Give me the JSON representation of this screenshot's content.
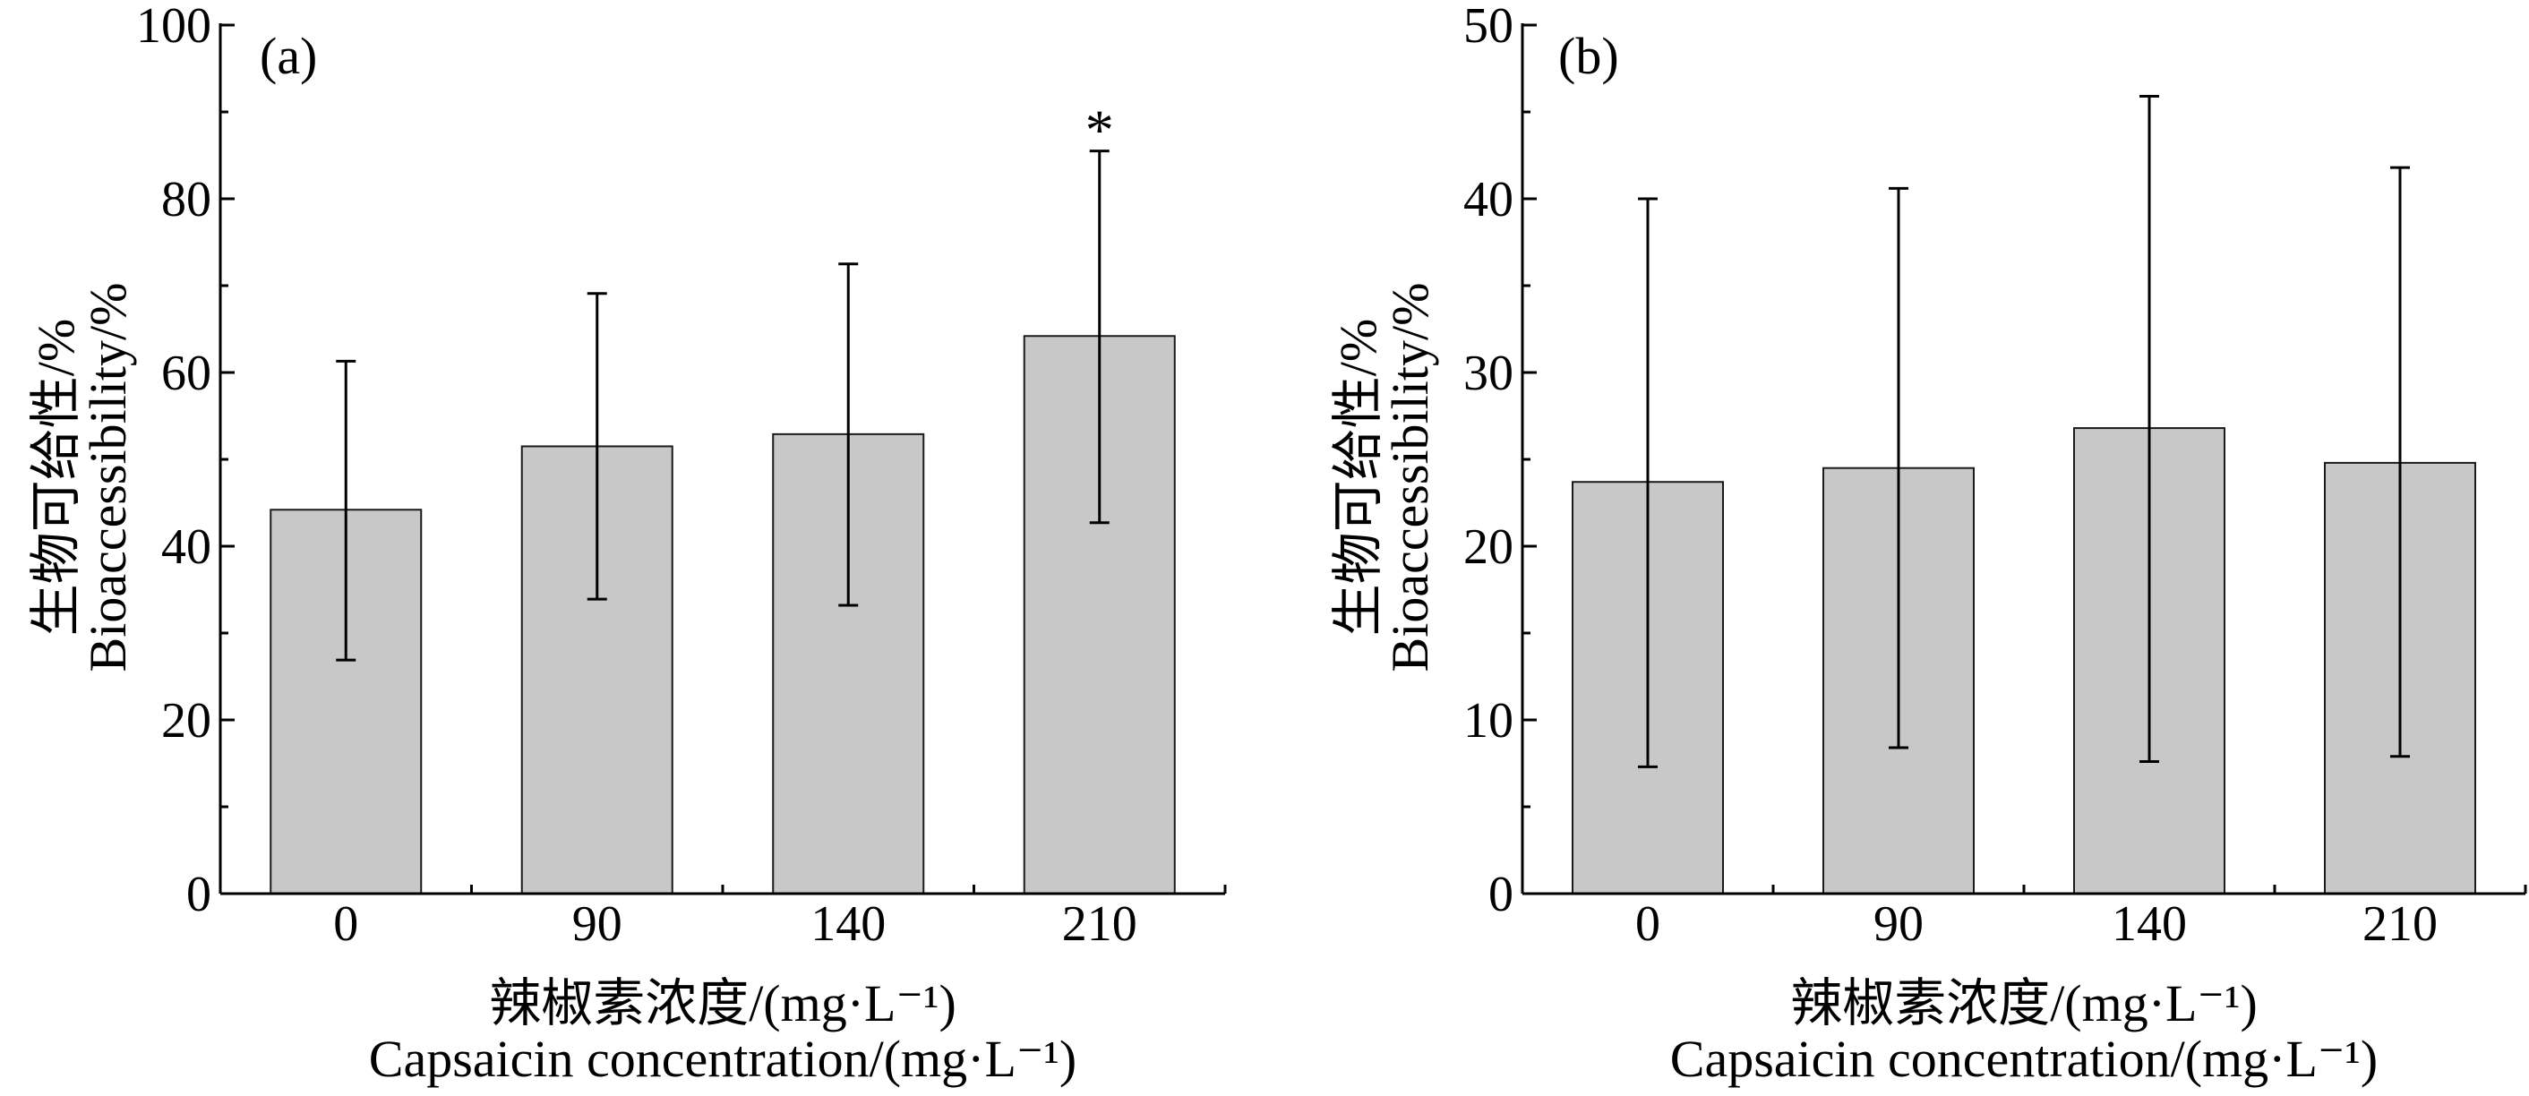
{
  "colors": {
    "bar_fill": "#c8c8c8",
    "bar_stroke": "#1a1a1a",
    "axis": "#000000"
  },
  "chart_data": [
    {
      "type": "bar",
      "panel_label": "(a)",
      "categories": [
        "0",
        "90",
        "140",
        "210"
      ],
      "values": [
        44.2,
        51.5,
        52.9,
        64.2
      ],
      "error_low": [
        26.9,
        33.9,
        33.2,
        42.7
      ],
      "error_high": [
        61.3,
        69.1,
        72.5,
        85.5
      ],
      "significance": [
        "",
        "",
        "",
        "*"
      ],
      "ylim": [
        0,
        100
      ],
      "yticks": [
        "0",
        "20",
        "40",
        "60",
        "80",
        "100"
      ],
      "ylabel": [
        "生物可给性/%",
        "Bioaccessibility/%"
      ],
      "xlabel": [
        "辣椒素浓度/(mg·L⁻¹)",
        "Capsaicin concentration/(mg·L⁻¹)"
      ],
      "grid": false
    },
    {
      "type": "bar",
      "panel_label": "(b)",
      "categories": [
        "0",
        "90",
        "140",
        "210"
      ],
      "values": [
        23.7,
        24.5,
        26.8,
        24.8
      ],
      "error_low": [
        7.3,
        8.4,
        7.6,
        7.9
      ],
      "error_high": [
        40.0,
        40.6,
        45.9,
        41.8
      ],
      "significance": [
        "",
        "",
        "",
        ""
      ],
      "ylim": [
        0,
        50
      ],
      "yticks": [
        "0",
        "10",
        "20",
        "30",
        "40",
        "50"
      ],
      "ylabel": [
        "生物可给性/%",
        "Bioaccessibility/%"
      ],
      "xlabel": [
        "辣椒素浓度/(mg·L⁻¹)",
        "Capsaicin concentration/(mg·L⁻¹)"
      ],
      "grid": false
    }
  ]
}
